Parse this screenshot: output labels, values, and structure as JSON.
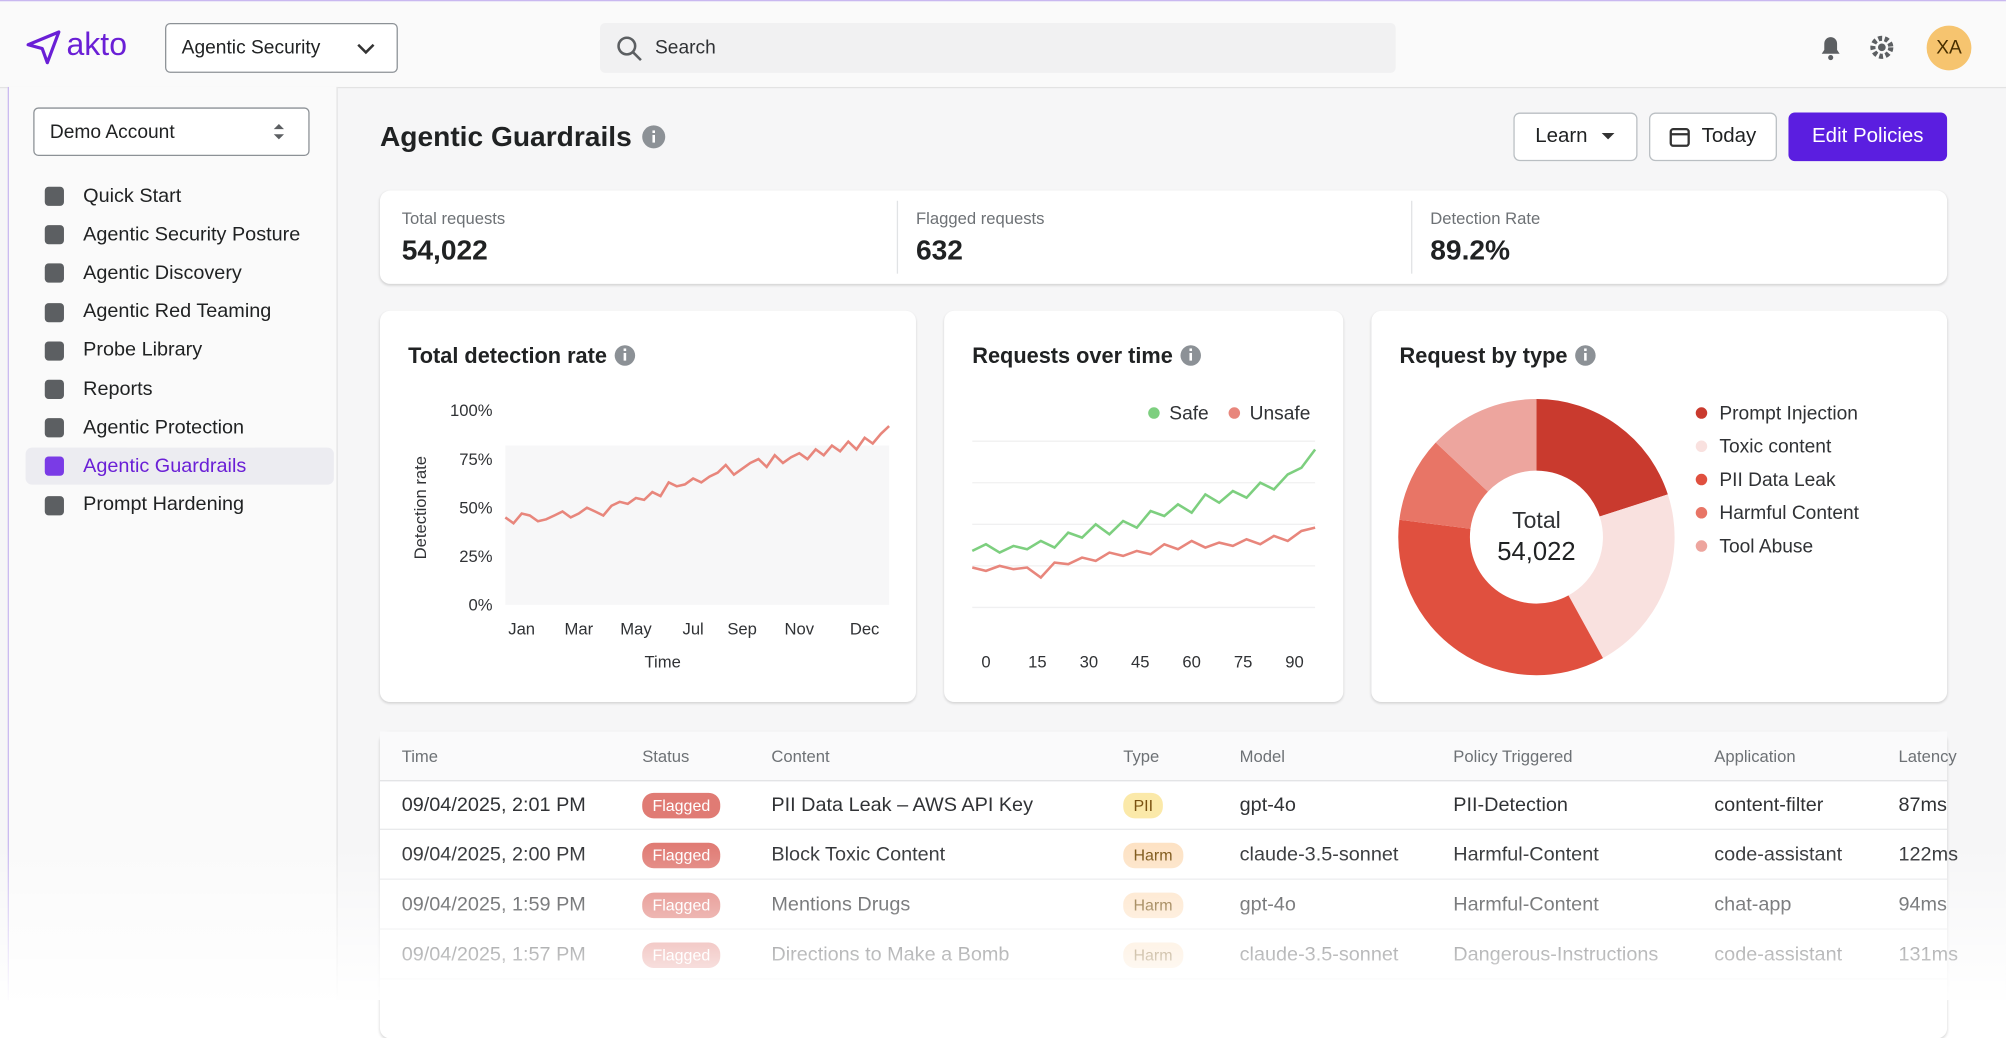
{
  "header": {
    "app_name": "akto",
    "product": "Agentic Security",
    "search_placeholder": "Search",
    "avatar": "XA"
  },
  "sidebar": {
    "account": "Demo Account",
    "items": [
      {
        "label": "Quick Start"
      },
      {
        "label": "Agentic Security Posture"
      },
      {
        "label": "Agentic Discovery"
      },
      {
        "label": "Agentic Red Teaming"
      },
      {
        "label": "Probe Library"
      },
      {
        "label": "Reports"
      },
      {
        "label": "Agentic Protection"
      },
      {
        "label": "Agentic Guardrails",
        "active": true
      },
      {
        "label": "Prompt Hardening"
      }
    ]
  },
  "page": {
    "title": "Agentic Guardrails",
    "learn": "Learn",
    "date": "Today",
    "edit": "Edit Policies"
  },
  "stats": [
    {
      "label": "Total requests",
      "value": "54,022"
    },
    {
      "label": "Flagged requests",
      "value": "632"
    },
    {
      "label": "Detection Rate",
      "value": "89.2%"
    }
  ],
  "chart_data": [
    {
      "type": "line",
      "title": "Total detection rate",
      "x_label": "Time",
      "y_label": "Detection rate",
      "color": "#e8867c",
      "categories": [
        null,
        null,
        "Jan",
        null,
        null,
        null,
        null,
        null,
        null,
        "Mar",
        null,
        null,
        null,
        null,
        null,
        null,
        "May",
        null,
        null,
        null,
        null,
        null,
        null,
        "Jul",
        null,
        null,
        null,
        null,
        null,
        "Sep",
        null,
        null,
        null,
        null,
        null,
        null,
        "Nov",
        null,
        null,
        null,
        null,
        null,
        null,
        null,
        "Dec",
        null,
        null,
        null
      ],
      "values": [
        45,
        42,
        47,
        46,
        43,
        44,
        46,
        48,
        45,
        47,
        50,
        48,
        46,
        51,
        53,
        52,
        55,
        54,
        58,
        56,
        63,
        61,
        62,
        65,
        63,
        66,
        68,
        72,
        67,
        70,
        73,
        75,
        71,
        77,
        73,
        76,
        78,
        75,
        80,
        77,
        82,
        79,
        84,
        80,
        86,
        83,
        88,
        92
      ],
      "ylim": [
        0,
        100
      ],
      "yticks": [
        {
          "value": 0,
          "label": "0%"
        },
        {
          "value": 25,
          "label": "25%"
        },
        {
          "value": 50,
          "label": "50%"
        },
        {
          "value": 75,
          "label": "75%"
        },
        {
          "value": 100,
          "label": "100%"
        }
      ]
    },
    {
      "type": "multiline",
      "title": "Requests over time",
      "x": [
        -4,
        0,
        4,
        8,
        12,
        16,
        20,
        24,
        28,
        32,
        36,
        40,
        44,
        48,
        52,
        56,
        60,
        64,
        68,
        72,
        76,
        80,
        84,
        88,
        92,
        96
      ],
      "xlim": [
        -4,
        96
      ],
      "xticks": [
        0,
        15,
        30,
        45,
        60,
        75,
        90
      ],
      "ylim": [
        0,
        100
      ],
      "series": [
        {
          "name": "Safe",
          "color": "#7dcf7f",
          "values": [
            34,
            38,
            33,
            37,
            35,
            40,
            36,
            45,
            42,
            50,
            44,
            52,
            48,
            58,
            55,
            62,
            57,
            68,
            63,
            70,
            66,
            75,
            71,
            80,
            84,
            95
          ]
        },
        {
          "name": "Unsafe",
          "color": "#e8867c",
          "values": [
            24,
            22,
            25,
            23,
            24,
            18,
            27,
            26,
            30,
            28,
            33,
            31,
            34,
            32,
            38,
            35,
            40,
            36,
            39,
            37,
            41,
            38,
            43,
            40,
            46,
            48
          ]
        }
      ]
    },
    {
      "type": "donut",
      "title": "Request by type",
      "center_label": "Total",
      "center_value": "54,022",
      "categories": [
        "Prompt Injection",
        "Toxic content",
        "PII Data Leak",
        "Harmful Content",
        "Tool Abuse"
      ],
      "values": [
        20,
        22,
        35,
        10,
        13
      ],
      "colors": [
        "#c93a2e",
        "#f9e1df",
        "#e0503f",
        "#e87566",
        "#eda59e"
      ]
    }
  ],
  "table": {
    "columns": [
      "Time",
      "Status",
      "Content",
      "Type",
      "Model",
      "Policy Triggered",
      "Application",
      "Latency"
    ],
    "rows": [
      [
        "09/04/2025, 2:01 PM",
        "Flagged",
        "PII Data Leak – AWS API Key",
        "PII",
        "gpt-4o",
        "PII-Detection",
        "content-filter",
        "87ms"
      ],
      [
        "09/04/2025, 2:00 PM",
        "Flagged",
        "Block Toxic Content",
        "Harm",
        "claude-3.5-sonnet",
        "Harmful-Content",
        "code-assistant",
        "122ms"
      ],
      [
        "09/04/2025, 1:59 PM",
        "Flagged",
        "Mentions Drugs",
        "Harm",
        "gpt-4o",
        "Harmful-Content",
        "chat-app",
        "94ms"
      ],
      [
        "09/04/2025, 1:57 PM",
        "Flagged",
        "Directions to Make a Bomb",
        "Harm",
        "claude-3.5-sonnet",
        "Dangerous-Instructions",
        "code-assistant",
        "131ms"
      ]
    ],
    "type_colors": [
      "#fbe9a9",
      "#fde2c4",
      "#fde2c4",
      "#fde2c4"
    ]
  }
}
